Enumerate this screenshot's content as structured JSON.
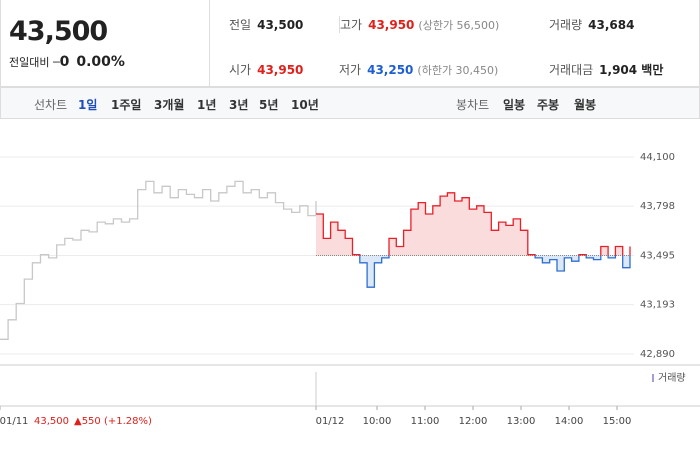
{
  "header": {
    "price": "43,500",
    "change_label": "전일대비",
    "change": "0",
    "change_rate": "0.00%",
    "stats": [
      {
        "label": "전일",
        "value": "43,500"
      },
      {
        "label": "고가",
        "value": "43,950",
        "note": "(상한가 56,500)"
      },
      {
        "label": "거래량",
        "value": "43,684"
      },
      {
        "label": "시가",
        "value": "43,950"
      },
      {
        "label": "저가",
        "value": "43,250",
        "note": "(하한가 30,450)"
      },
      {
        "label": "거래대금",
        "value": "1,904 백만"
      }
    ]
  },
  "tabs": {
    "line_label": "선차트",
    "line_periods": [
      "1일",
      "1주일",
      "3개월",
      "1년",
      "3년",
      "5년",
      "10년"
    ],
    "candle_label": "봉차트",
    "candle_periods": [
      "일봉",
      "주봉",
      "월봉"
    ]
  },
  "chart_data": {
    "type": "line",
    "ylim": [
      42890,
      44100
    ],
    "yticks": [
      {
        "value": 44100,
        "label": "44,100"
      },
      {
        "value": 43798,
        "label": "43,798"
      },
      {
        "value": 43495,
        "label": "43,495"
      },
      {
        "value": 43193,
        "label": "43,193"
      },
      {
        "value": 42890,
        "label": "42,890"
      }
    ],
    "baseline": 43495,
    "series": [
      {
        "color": "#c8c8c8",
        "values": [
          42980,
          43100,
          43200,
          43350,
          43450,
          43500,
          43480,
          43560,
          43600,
          43590,
          43650,
          43640,
          43700,
          43690,
          43720,
          43700,
          43720,
          43900,
          43950,
          43880,
          43920,
          43850,
          43900,
          43870,
          43850,
          43900,
          43830,
          43880,
          43920,
          43950,
          43880,
          43900,
          43850,
          43880,
          43820,
          43780,
          43760,
          43800,
          43740,
          43830
        ]
      },
      {
        "color": "#e8202a",
        "down_color": "#2d6fd0",
        "values": [
          43750,
          43600,
          43700,
          43650,
          43600,
          43500,
          43450,
          43300,
          43450,
          43480,
          43600,
          43550,
          43650,
          43780,
          43820,
          43750,
          43800,
          43860,
          43880,
          43830,
          43850,
          43780,
          43800,
          43760,
          43650,
          43700,
          43680,
          43720,
          43650,
          43500,
          43480,
          43450,
          43470,
          43400,
          43480,
          43460,
          43500,
          43480,
          43470,
          43550,
          43480,
          43550,
          43420,
          43550
        ]
      }
    ],
    "x_labels": [
      "01/11",
      "01/12",
      "10:00",
      "11:00",
      "12:00",
      "13:00",
      "14:00",
      "15:00"
    ],
    "prev_close": "43,500",
    "prev_change": "▲550 (+1.28%)",
    "volume_label": "거래량"
  }
}
